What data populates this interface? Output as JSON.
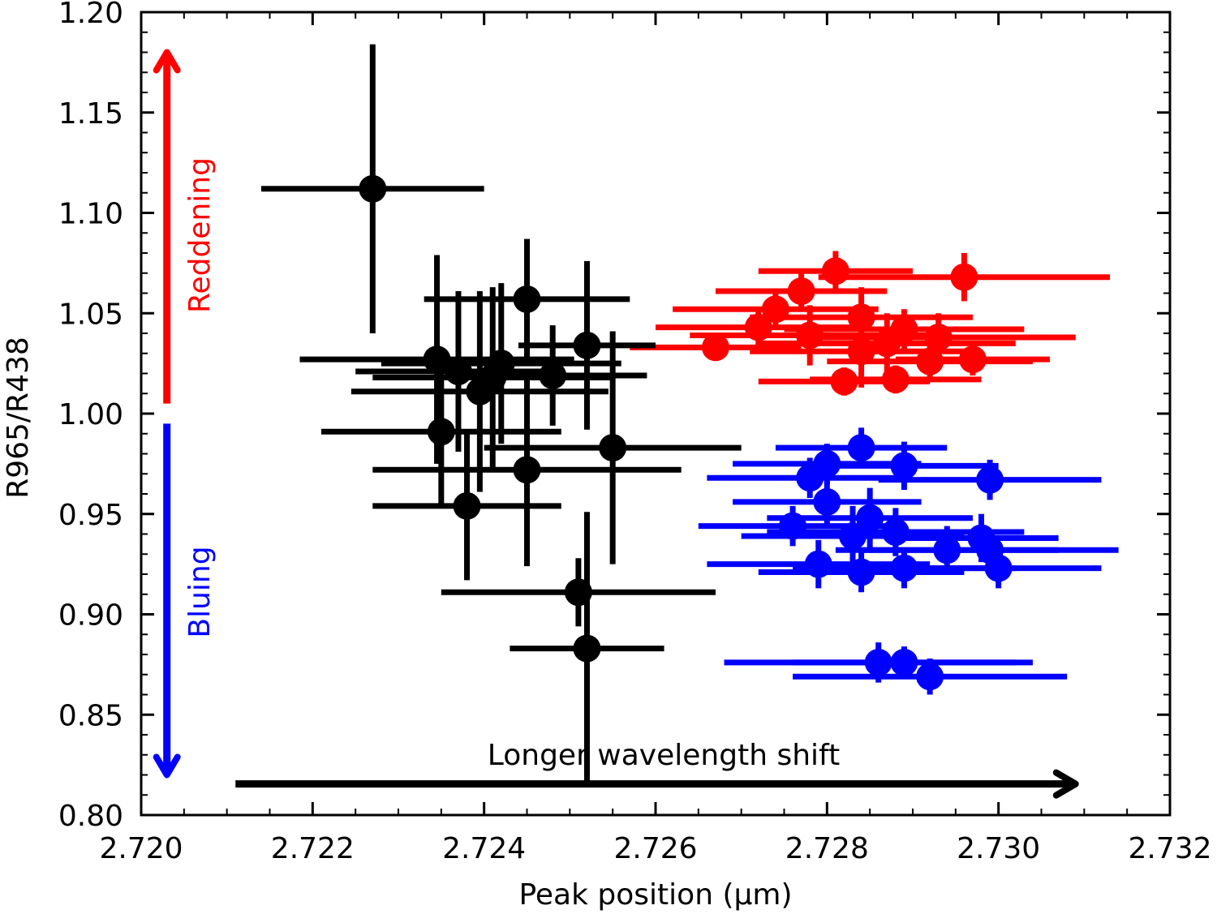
{
  "chart_data": {
    "type": "scatter",
    "title": "",
    "xlabel": "Peak position (μm)",
    "ylabel": "R965/R438",
    "xlim": [
      2.72,
      2.732
    ],
    "ylim": [
      0.8,
      1.2
    ],
    "x_ticks": [
      2.72,
      2.722,
      2.724,
      2.726,
      2.728,
      2.73,
      2.732
    ],
    "x_tick_labels": [
      "2.720",
      "2.722",
      "2.724",
      "2.726",
      "2.728",
      "2.730",
      "2.732"
    ],
    "y_ticks": [
      0.8,
      0.85,
      0.9,
      0.95,
      1.0,
      1.05,
      1.1,
      1.15,
      1.2
    ],
    "y_tick_labels": [
      "0.80",
      "0.85",
      "0.90",
      "0.95",
      "1.00",
      "1.05",
      "1.10",
      "1.15",
      "1.20"
    ],
    "grid": false,
    "colors": {
      "black_series": "#000000",
      "red_series": "#ff0000",
      "blue_series": "#0000ff"
    },
    "annotations": [
      {
        "text": "Reddening",
        "color": "#ff0000",
        "arrow": "up",
        "from_y": 1.005,
        "to_y": 1.18,
        "x": 2.7203
      },
      {
        "text": "Bluing",
        "color": "#0000ff",
        "arrow": "down",
        "from_y": 0.995,
        "to_y": 0.82,
        "x": 2.7203
      },
      {
        "text": "Longer wavelength shift",
        "color": "#000000",
        "arrow": "right",
        "from_x": 2.7211,
        "to_x": 2.7309,
        "y": 0.8155
      }
    ],
    "series": [
      {
        "name": "black",
        "color": "#000000",
        "points": [
          {
            "x": 2.7227,
            "y": 1.112,
            "xerr": 0.0013,
            "yerr": 0.072
          },
          {
            "x": 2.72345,
            "y": 1.027,
            "xerr": 0.0016,
            "yerr": 0.052
          },
          {
            "x": 2.7245,
            "y": 1.057,
            "xerr": 0.0012,
            "yerr": 0.03
          },
          {
            "x": 2.7242,
            "y": 1.025,
            "xerr": 0.0014,
            "yerr": 0.04
          },
          {
            "x": 2.7237,
            "y": 1.021,
            "xerr": 0.0012,
            "yerr": 0.04
          },
          {
            "x": 2.7241,
            "y": 1.018,
            "xerr": 0.0014,
            "yerr": 0.045
          },
          {
            "x": 2.72395,
            "y": 1.011,
            "xerr": 0.0015,
            "yerr": 0.05
          },
          {
            "x": 2.7248,
            "y": 1.019,
            "xerr": 0.0011,
            "yerr": 0.025
          },
          {
            "x": 2.7252,
            "y": 1.034,
            "xerr": 0.0008,
            "yerr": 0.042
          },
          {
            "x": 2.7235,
            "y": 0.991,
            "xerr": 0.0014,
            "yerr": 0.038
          },
          {
            "x": 2.7255,
            "y": 0.983,
            "xerr": 0.0015,
            "yerr": 0.058
          },
          {
            "x": 2.7245,
            "y": 0.972,
            "xerr": 0.0018,
            "yerr": 0.048
          },
          {
            "x": 2.7238,
            "y": 0.954,
            "xerr": 0.0011,
            "yerr": 0.037
          },
          {
            "x": 2.7251,
            "y": 0.911,
            "xerr": 0.0016,
            "yerr": 0.017
          },
          {
            "x": 2.7252,
            "y": 0.883,
            "xerr": 0.0009,
            "yerr": 0.068
          }
        ]
      },
      {
        "name": "red",
        "color": "#ff0000",
        "points": [
          {
            "x": 2.7267,
            "y": 1.033,
            "xerr": 0.001,
            "yerr": 0.006
          },
          {
            "x": 2.7281,
            "y": 1.071,
            "xerr": 0.0009,
            "yerr": 0.01
          },
          {
            "x": 2.7296,
            "y": 1.068,
            "xerr": 0.0017,
            "yerr": 0.012
          },
          {
            "x": 2.7277,
            "y": 1.061,
            "xerr": 0.001,
            "yerr": 0.01
          },
          {
            "x": 2.7274,
            "y": 1.052,
            "xerr": 0.0012,
            "yerr": 0.01
          },
          {
            "x": 2.7272,
            "y": 1.043,
            "xerr": 0.0012,
            "yerr": 0.01
          },
          {
            "x": 2.7284,
            "y": 1.048,
            "xerr": 0.0013,
            "yerr": 0.015
          },
          {
            "x": 2.7278,
            "y": 1.039,
            "xerr": 0.0014,
            "yerr": 0.015
          },
          {
            "x": 2.7284,
            "y": 1.031,
            "xerr": 0.0013,
            "yerr": 0.018
          },
          {
            "x": 2.7287,
            "y": 1.035,
            "xerr": 0.0015,
            "yerr": 0.015
          },
          {
            "x": 2.7293,
            "y": 1.038,
            "xerr": 0.0016,
            "yerr": 0.012
          },
          {
            "x": 2.7289,
            "y": 1.042,
            "xerr": 0.0014,
            "yerr": 0.01
          },
          {
            "x": 2.7292,
            "y": 1.026,
            "xerr": 0.0012,
            "yerr": 0.008
          },
          {
            "x": 2.7297,
            "y": 1.027,
            "xerr": 0.0009,
            "yerr": 0.008
          },
          {
            "x": 2.7282,
            "y": 1.016,
            "xerr": 0.001,
            "yerr": 0.007
          },
          {
            "x": 2.7288,
            "y": 1.017,
            "xerr": 0.001,
            "yerr": 0.007
          }
        ]
      },
      {
        "name": "blue",
        "color": "#0000ff",
        "points": [
          {
            "x": 2.7284,
            "y": 0.983,
            "xerr": 0.001,
            "yerr": 0.01
          },
          {
            "x": 2.728,
            "y": 0.975,
            "xerr": 0.0011,
            "yerr": 0.01
          },
          {
            "x": 2.7289,
            "y": 0.974,
            "xerr": 0.0011,
            "yerr": 0.012
          },
          {
            "x": 2.7278,
            "y": 0.968,
            "xerr": 0.0012,
            "yerr": 0.01
          },
          {
            "x": 2.7299,
            "y": 0.967,
            "xerr": 0.0013,
            "yerr": 0.01
          },
          {
            "x": 2.728,
            "y": 0.956,
            "xerr": 0.0011,
            "yerr": 0.013
          },
          {
            "x": 2.7285,
            "y": 0.948,
            "xerr": 0.0012,
            "yerr": 0.015
          },
          {
            "x": 2.7276,
            "y": 0.944,
            "xerr": 0.0011,
            "yerr": 0.01
          },
          {
            "x": 2.7283,
            "y": 0.939,
            "xerr": 0.0013,
            "yerr": 0.015
          },
          {
            "x": 2.7288,
            "y": 0.941,
            "xerr": 0.0015,
            "yerr": 0.012
          },
          {
            "x": 2.7298,
            "y": 0.938,
            "xerr": 0.0009,
            "yerr": 0.012
          },
          {
            "x": 2.7294,
            "y": 0.932,
            "xerr": 0.0013,
            "yerr": 0.012
          },
          {
            "x": 2.7299,
            "y": 0.932,
            "xerr": 0.0015,
            "yerr": 0.01
          },
          {
            "x": 2.7279,
            "y": 0.925,
            "xerr": 0.0013,
            "yerr": 0.012
          },
          {
            "x": 2.7284,
            "y": 0.921,
            "xerr": 0.0012,
            "yerr": 0.01
          },
          {
            "x": 2.7289,
            "y": 0.923,
            "xerr": 0.0013,
            "yerr": 0.01
          },
          {
            "x": 2.73,
            "y": 0.923,
            "xerr": 0.0012,
            "yerr": 0.01
          },
          {
            "x": 2.7286,
            "y": 0.876,
            "xerr": 0.0018,
            "yerr": 0.01
          },
          {
            "x": 2.7289,
            "y": 0.876,
            "xerr": 0.0013,
            "yerr": 0.008
          },
          {
            "x": 2.7292,
            "y": 0.869,
            "xerr": 0.0016,
            "yerr": 0.009
          }
        ]
      }
    ]
  }
}
